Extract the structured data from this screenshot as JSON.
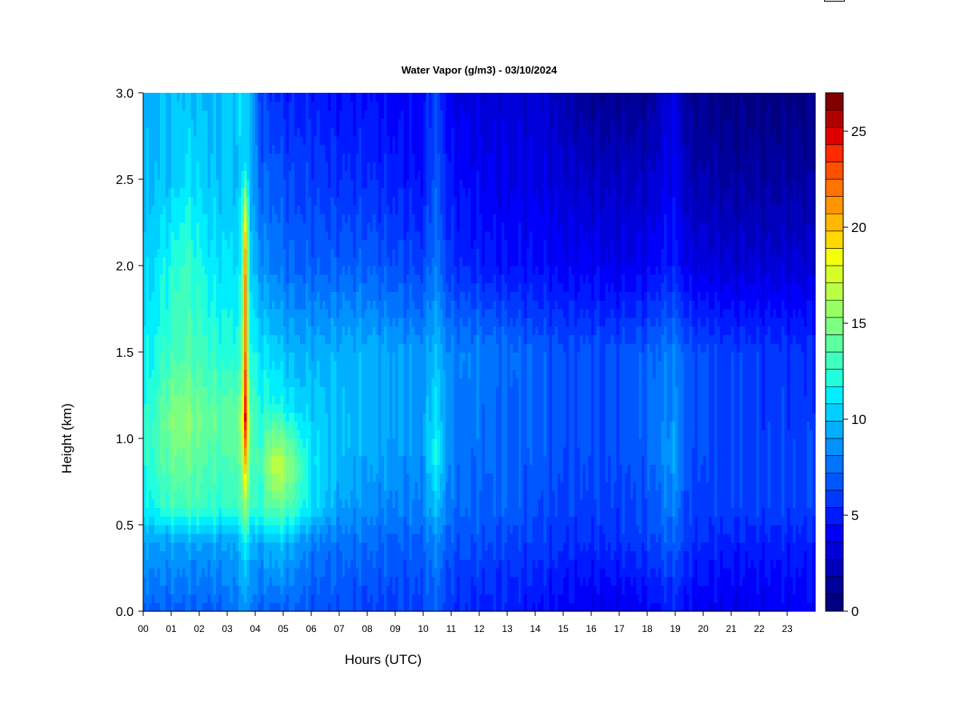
{
  "chart_data": {
    "type": "heatmap",
    "title": "Water Vapor (g/m3) - 03/10/2024",
    "xlabel": "Hours (UTC)",
    "ylabel": "Height (km)",
    "xlim": [
      0,
      24
    ],
    "ylim": [
      0,
      3.0
    ],
    "x_ticks": [
      "00",
      "01",
      "02",
      "03",
      "04",
      "05",
      "06",
      "07",
      "08",
      "09",
      "10",
      "11",
      "12",
      "13",
      "14",
      "15",
      "16",
      "17",
      "18",
      "19",
      "20",
      "21",
      "22",
      "23"
    ],
    "y_ticks": [
      "0.0",
      "0.5",
      "1.0",
      "1.5",
      "2.0",
      "2.5",
      "3.0"
    ],
    "colorbar": {
      "range": [
        0,
        27
      ],
      "step": 1,
      "ticks": [
        "0",
        "5",
        "10",
        "15",
        "20",
        "25"
      ],
      "colors": [
        "#000080",
        "#00009C",
        "#0000BC",
        "#0000DB",
        "#0000FA",
        "#001AFF",
        "#0038FF",
        "#0056FF",
        "#0074FF",
        "#0092FF",
        "#00B0FF",
        "#00D0FF",
        "#00EEFF",
        "#22FFDC",
        "#40FFBE",
        "#5EFFA0",
        "#7CFF82",
        "#9AFF64",
        "#B8FF46",
        "#D6FF28",
        "#F4FF0A",
        "#FFD800",
        "#FFB800",
        "#FF9600",
        "#FF7400",
        "#FF5000",
        "#FF2A00",
        "#E00000",
        "#B00000",
        "#800000"
      ]
    },
    "column_profiles": [
      {
        "hour": 0.0,
        "profile": [
          [
            0,
            7
          ],
          [
            0.4,
            9
          ],
          [
            0.6,
            11
          ],
          [
            1.0,
            12
          ],
          [
            1.5,
            11
          ],
          [
            2.0,
            10
          ],
          [
            2.5,
            9.5
          ],
          [
            3.0,
            9
          ]
        ]
      },
      {
        "hour": 0.5,
        "profile": [
          [
            0,
            7
          ],
          [
            0.4,
            9
          ],
          [
            0.6,
            12
          ],
          [
            1.0,
            13.5
          ],
          [
            1.5,
            12
          ],
          [
            2.0,
            11
          ],
          [
            2.5,
            10
          ],
          [
            3.0,
            9.5
          ]
        ]
      },
      {
        "hour": 1.0,
        "profile": [
          [
            0,
            7
          ],
          [
            0.4,
            9
          ],
          [
            0.6,
            13
          ],
          [
            1.1,
            15
          ],
          [
            1.5,
            13
          ],
          [
            2.0,
            12
          ],
          [
            2.5,
            10
          ],
          [
            3.0,
            10
          ]
        ]
      },
      {
        "hour": 1.5,
        "profile": [
          [
            0,
            7
          ],
          [
            0.4,
            9
          ],
          [
            0.6,
            13
          ],
          [
            1.1,
            15.5
          ],
          [
            1.5,
            13.5
          ],
          [
            2.0,
            13
          ],
          [
            2.5,
            11
          ],
          [
            3.0,
            10
          ]
        ]
      },
      {
        "hour": 2.0,
        "profile": [
          [
            0,
            7
          ],
          [
            0.4,
            9
          ],
          [
            0.6,
            13
          ],
          [
            1.1,
            14.5
          ],
          [
            1.5,
            13
          ],
          [
            2.0,
            12
          ],
          [
            2.5,
            10.5
          ],
          [
            3.0,
            10
          ]
        ]
      },
      {
        "hour": 2.5,
        "profile": [
          [
            0,
            7
          ],
          [
            0.4,
            9
          ],
          [
            0.6,
            12.5
          ],
          [
            1.1,
            14
          ],
          [
            1.5,
            12.5
          ],
          [
            2.0,
            11
          ],
          [
            2.5,
            10
          ],
          [
            3.0,
            9.5
          ]
        ]
      },
      {
        "hour": 3.0,
        "profile": [
          [
            0,
            7.5
          ],
          [
            0.4,
            9
          ],
          [
            0.6,
            12.5
          ],
          [
            1.1,
            14
          ],
          [
            1.5,
            12
          ],
          [
            2.0,
            11
          ],
          [
            2.5,
            10
          ],
          [
            3.0,
            10
          ]
        ]
      },
      {
        "hour": 3.5,
        "profile": [
          [
            0,
            8
          ],
          [
            0.4,
            9.5
          ],
          [
            0.6,
            13
          ],
          [
            1.1,
            15
          ],
          [
            1.5,
            12.5
          ],
          [
            2.0,
            11
          ],
          [
            2.5,
            10
          ],
          [
            3.0,
            10.5
          ]
        ]
      },
      {
        "hour": 3.65,
        "profile": [
          [
            0,
            9
          ],
          [
            0.4,
            12
          ],
          [
            0.7,
            18
          ],
          [
            1.1,
            25
          ],
          [
            1.5,
            22
          ],
          [
            2.0,
            21
          ],
          [
            2.25,
            19
          ],
          [
            2.6,
            11
          ],
          [
            3.0,
            11
          ]
        ]
      },
      {
        "hour": 3.8,
        "profile": [
          [
            0,
            8
          ],
          [
            0.4,
            9.5
          ],
          [
            0.6,
            13
          ],
          [
            1.1,
            14
          ],
          [
            1.5,
            12
          ],
          [
            2.0,
            10.5
          ],
          [
            2.5,
            9.5
          ],
          [
            3.0,
            10
          ]
        ]
      },
      {
        "hour": 4.2,
        "profile": [
          [
            0,
            7
          ],
          [
            0.4,
            9
          ],
          [
            0.6,
            12.5
          ],
          [
            0.9,
            13
          ],
          [
            1.5,
            11
          ],
          [
            2.0,
            8.5
          ],
          [
            2.5,
            7
          ],
          [
            3.0,
            6
          ]
        ]
      },
      {
        "hour": 4.65,
        "profile": [
          [
            0,
            7
          ],
          [
            0.4,
            10
          ],
          [
            0.6,
            14
          ],
          [
            0.85,
            17
          ],
          [
            1.2,
            12
          ],
          [
            1.5,
            10.5
          ],
          [
            2.0,
            8
          ],
          [
            2.5,
            7
          ],
          [
            3.0,
            5.5
          ]
        ]
      },
      {
        "hour": 5.0,
        "profile": [
          [
            0,
            7
          ],
          [
            0.4,
            10
          ],
          [
            0.6,
            14
          ],
          [
            0.85,
            16.5
          ],
          [
            1.2,
            11.5
          ],
          [
            1.5,
            10
          ],
          [
            2.0,
            7.5
          ],
          [
            2.5,
            6.5
          ],
          [
            3.0,
            5
          ]
        ]
      },
      {
        "hour": 5.5,
        "profile": [
          [
            0,
            7
          ],
          [
            0.4,
            9
          ],
          [
            0.6,
            12.5
          ],
          [
            0.85,
            14
          ],
          [
            1.2,
            10.5
          ],
          [
            1.5,
            9.5
          ],
          [
            2.0,
            7
          ],
          [
            2.5,
            6
          ],
          [
            3.0,
            5
          ]
        ]
      },
      {
        "hour": 6.0,
        "profile": [
          [
            0,
            6.5
          ],
          [
            0.4,
            8
          ],
          [
            0.6,
            11
          ],
          [
            0.9,
            11
          ],
          [
            1.5,
            9.5
          ],
          [
            2.0,
            7
          ],
          [
            2.5,
            6
          ],
          [
            3.0,
            5
          ]
        ]
      },
      {
        "hour": 7.0,
        "profile": [
          [
            0,
            6.5
          ],
          [
            0.4,
            7.5
          ],
          [
            0.6,
            9
          ],
          [
            1.0,
            10
          ],
          [
            1.5,
            9.5
          ],
          [
            2.0,
            7
          ],
          [
            2.5,
            5.5
          ],
          [
            3.0,
            4.5
          ]
        ]
      },
      {
        "hour": 8.0,
        "profile": [
          [
            0,
            6
          ],
          [
            0.4,
            7.5
          ],
          [
            0.6,
            8.5
          ],
          [
            1.0,
            9.5
          ],
          [
            1.5,
            9.5
          ],
          [
            2.0,
            7
          ],
          [
            2.5,
            5.5
          ],
          [
            3.0,
            4.5
          ]
        ]
      },
      {
        "hour": 9.0,
        "profile": [
          [
            0,
            6
          ],
          [
            0.4,
            7
          ],
          [
            0.6,
            8
          ],
          [
            1.0,
            9
          ],
          [
            1.5,
            9
          ],
          [
            2.0,
            6.5
          ],
          [
            2.5,
            5
          ],
          [
            3.0,
            4
          ]
        ]
      },
      {
        "hour": 10.0,
        "profile": [
          [
            0,
            6
          ],
          [
            0.4,
            7
          ],
          [
            0.6,
            8
          ],
          [
            1.0,
            8.5
          ],
          [
            1.5,
            8.5
          ],
          [
            2.0,
            6
          ],
          [
            2.5,
            4.5
          ],
          [
            3.0,
            4
          ]
        ]
      },
      {
        "hour": 10.4,
        "profile": [
          [
            0,
            7
          ],
          [
            0.4,
            8.5
          ],
          [
            0.6,
            10
          ],
          [
            0.9,
            12
          ],
          [
            1.5,
            10
          ],
          [
            2.0,
            8
          ],
          [
            2.5,
            7
          ],
          [
            3.0,
            6.5
          ]
        ]
      },
      {
        "hour": 11.0,
        "profile": [
          [
            0,
            5.5
          ],
          [
            0.4,
            6.5
          ],
          [
            0.6,
            7.5
          ],
          [
            1.0,
            8
          ],
          [
            1.5,
            8
          ],
          [
            2.0,
            5.5
          ],
          [
            2.5,
            4.5
          ],
          [
            3.0,
            3.5
          ]
        ]
      },
      {
        "hour": 12.0,
        "profile": [
          [
            0,
            5
          ],
          [
            0.4,
            6.5
          ],
          [
            0.6,
            7
          ],
          [
            1.0,
            7.5
          ],
          [
            1.5,
            8
          ],
          [
            2.0,
            5
          ],
          [
            2.5,
            4
          ],
          [
            3.0,
            3
          ]
        ]
      },
      {
        "hour": 13.0,
        "profile": [
          [
            0,
            5
          ],
          [
            0.4,
            6
          ],
          [
            0.6,
            7
          ],
          [
            1.0,
            7
          ],
          [
            1.5,
            7.5
          ],
          [
            2.0,
            4.5
          ],
          [
            2.5,
            3.5
          ],
          [
            3.0,
            3
          ]
        ]
      },
      {
        "hour": 14.0,
        "profile": [
          [
            0,
            4.5
          ],
          [
            0.4,
            6
          ],
          [
            0.6,
            6.5
          ],
          [
            1.0,
            7
          ],
          [
            1.5,
            7
          ],
          [
            2.0,
            4.5
          ],
          [
            2.5,
            3.5
          ],
          [
            3.0,
            3
          ]
        ]
      },
      {
        "hour": 15.0,
        "profile": [
          [
            0,
            4
          ],
          [
            0.4,
            5.5
          ],
          [
            0.6,
            6
          ],
          [
            1.0,
            6.5
          ],
          [
            1.5,
            6.5
          ],
          [
            2.0,
            4
          ],
          [
            2.5,
            3
          ],
          [
            3.0,
            2
          ]
        ]
      },
      {
        "hour": 16.0,
        "profile": [
          [
            0,
            3.5
          ],
          [
            0.4,
            5.5
          ],
          [
            0.6,
            6
          ],
          [
            1.0,
            6.5
          ],
          [
            1.5,
            6.5
          ],
          [
            2.0,
            4
          ],
          [
            2.5,
            2.5
          ],
          [
            3.0,
            1
          ]
        ]
      },
      {
        "hour": 17.0,
        "profile": [
          [
            0,
            3.5
          ],
          [
            0.4,
            5.5
          ],
          [
            0.6,
            6
          ],
          [
            1.0,
            6.5
          ],
          [
            1.5,
            6.5
          ],
          [
            2.0,
            3.5
          ],
          [
            2.5,
            2.5
          ],
          [
            3.0,
            1
          ]
        ]
      },
      {
        "hour": 18.0,
        "profile": [
          [
            0,
            4
          ],
          [
            0.4,
            6
          ],
          [
            0.6,
            6.5
          ],
          [
            1.0,
            7
          ],
          [
            1.5,
            7
          ],
          [
            2.0,
            4
          ],
          [
            2.5,
            2.5
          ],
          [
            3.0,
            1
          ]
        ]
      },
      {
        "hour": 18.95,
        "profile": [
          [
            0,
            5
          ],
          [
            0.4,
            7
          ],
          [
            0.6,
            8
          ],
          [
            0.9,
            9
          ],
          [
            1.5,
            8
          ],
          [
            2.0,
            5
          ],
          [
            2.5,
            4
          ],
          [
            3.0,
            3.5
          ]
        ]
      },
      {
        "hour": 19.5,
        "profile": [
          [
            0,
            4
          ],
          [
            0.4,
            5.5
          ],
          [
            0.6,
            6
          ],
          [
            1.0,
            6.5
          ],
          [
            1.5,
            6.5
          ],
          [
            2.0,
            3.5
          ],
          [
            2.5,
            2
          ],
          [
            3.0,
            1
          ]
        ]
      },
      {
        "hour": 21.0,
        "profile": [
          [
            0,
            3.5
          ],
          [
            0.4,
            5
          ],
          [
            0.6,
            6
          ],
          [
            1.0,
            6
          ],
          [
            1.5,
            6
          ],
          [
            2.0,
            3
          ],
          [
            2.5,
            1.5
          ],
          [
            3.0,
            0.5
          ]
        ]
      },
      {
        "hour": 24.0,
        "profile": [
          [
            0,
            4
          ],
          [
            0.4,
            5
          ],
          [
            0.6,
            6
          ],
          [
            1.0,
            6
          ],
          [
            1.5,
            5.5
          ],
          [
            2.0,
            3
          ],
          [
            2.5,
            1.5
          ],
          [
            3.0,
            0.5
          ]
        ]
      }
    ]
  }
}
